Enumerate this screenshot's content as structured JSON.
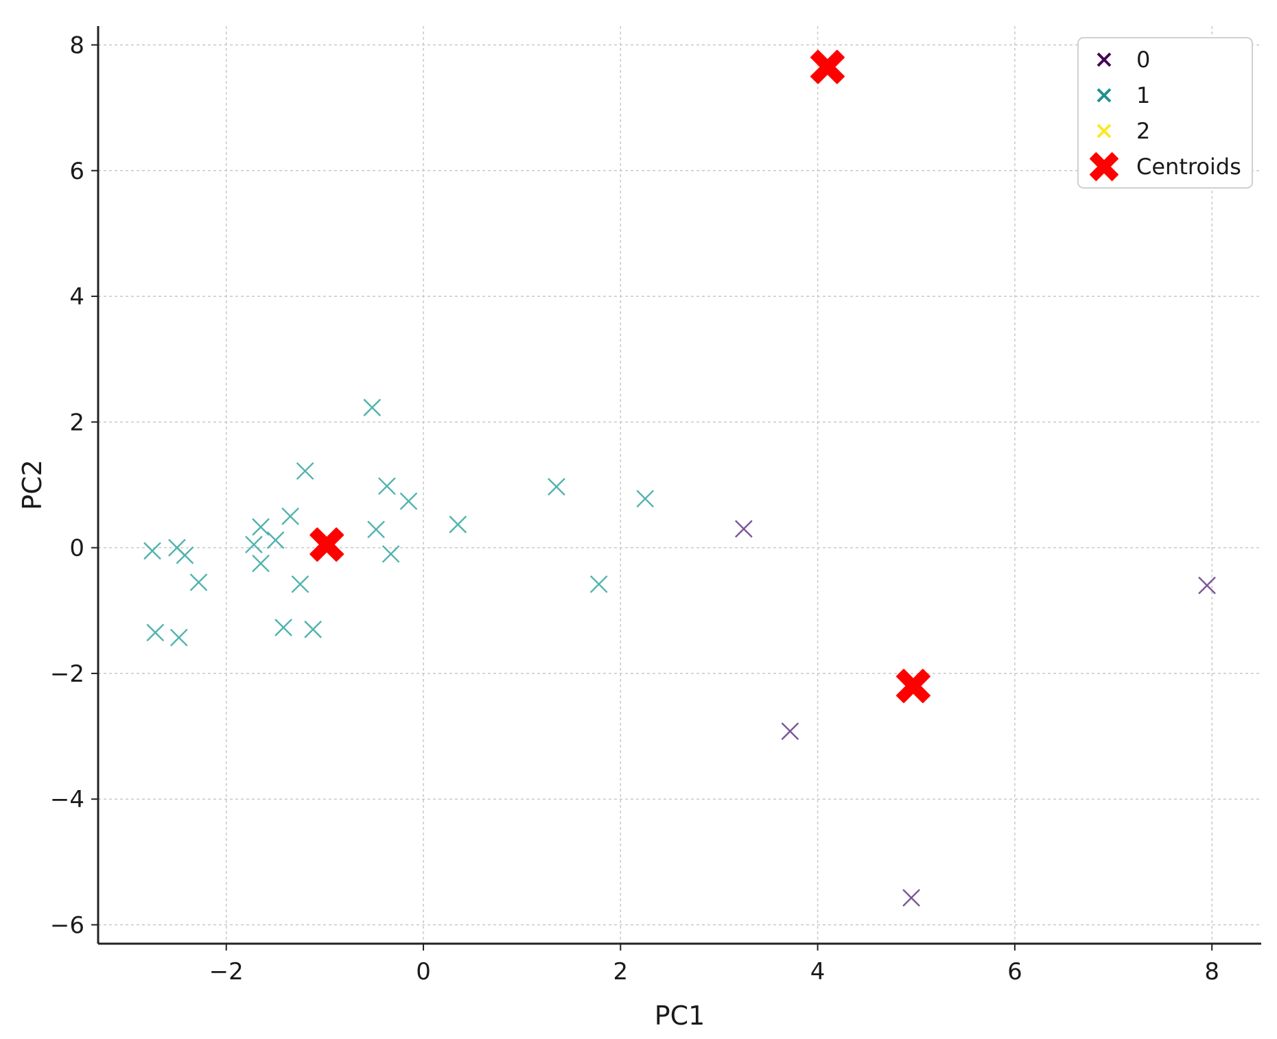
{
  "chart_data": {
    "type": "scatter",
    "title": "",
    "xlabel": "PC1",
    "ylabel": "PC2",
    "xlim": [
      -3.3,
      8.5
    ],
    "ylim": [
      -6.3,
      8.3
    ],
    "xticks": [
      -2,
      0,
      2,
      4,
      6,
      8
    ],
    "yticks": [
      -6,
      -4,
      -2,
      0,
      2,
      4,
      6,
      8
    ],
    "grid": true,
    "legend_position": "top-right",
    "series": [
      {
        "name": "0",
        "marker": "x",
        "color": "#440154",
        "point_color": "#7b5597",
        "points": [
          [
            3.25,
            0.3
          ],
          [
            3.72,
            -2.92
          ],
          [
            4.95,
            -5.57
          ],
          [
            7.95,
            -0.6
          ]
        ]
      },
      {
        "name": "1",
        "marker": "x",
        "color": "#21918c",
        "point_color": "#4fb3ad",
        "points": [
          [
            -2.75,
            -0.05
          ],
          [
            -2.5,
            0.0
          ],
          [
            -2.42,
            -0.12
          ],
          [
            -2.28,
            -0.55
          ],
          [
            -2.72,
            -1.35
          ],
          [
            -2.48,
            -1.43
          ],
          [
            -1.72,
            0.05
          ],
          [
            -1.65,
            0.33
          ],
          [
            -1.65,
            -0.25
          ],
          [
            -1.5,
            0.12
          ],
          [
            -1.35,
            0.5
          ],
          [
            -1.42,
            -1.27
          ],
          [
            -1.25,
            -0.58
          ],
          [
            -1.2,
            1.22
          ],
          [
            -1.12,
            -1.3
          ],
          [
            -0.52,
            2.23
          ],
          [
            -0.48,
            0.29
          ],
          [
            -0.37,
            0.98
          ],
          [
            -0.33,
            -0.1
          ],
          [
            -0.15,
            0.74
          ],
          [
            0.35,
            0.37
          ],
          [
            1.35,
            0.97
          ],
          [
            1.78,
            -0.58
          ],
          [
            2.25,
            0.78
          ]
        ]
      },
      {
        "name": "2",
        "marker": "x",
        "color": "#fde725",
        "point_color": "#fde725",
        "points": []
      },
      {
        "name": "Centroids",
        "marker": "X",
        "color": "#ff0000",
        "point_color": "#ff0000",
        "points": [
          [
            -0.98,
            0.05
          ],
          [
            4.1,
            7.65
          ],
          [
            4.97,
            -2.2
          ]
        ]
      }
    ]
  }
}
